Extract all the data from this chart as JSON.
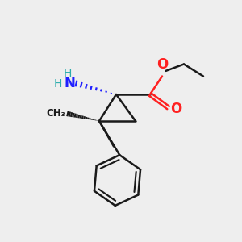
{
  "background_color": "#eeeeee",
  "atom_colors": {
    "C": "#1a1a1a",
    "N": "#2020ff",
    "O": "#ff2020",
    "H": "#2aacac"
  },
  "figsize": [
    3.0,
    3.0
  ],
  "dpi": 100
}
